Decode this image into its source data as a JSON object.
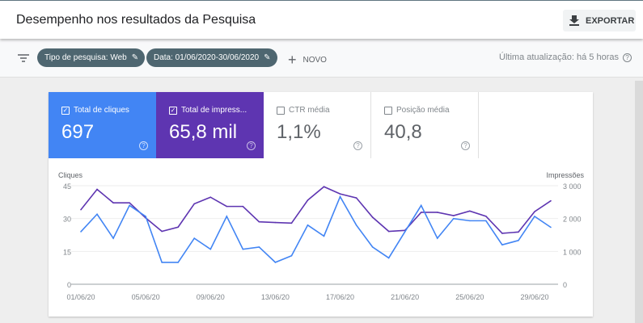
{
  "header": {
    "title": "Desempenho nos resultados da Pesquisa",
    "export_label": "EXPORTAR"
  },
  "toolbar": {
    "chips": [
      "Tipo de pesquisa: Web",
      "Data: 01/06/2020-30/06/2020"
    ],
    "new_label": "NOVO",
    "updated": "Última atualização: há 5 horas"
  },
  "metrics": [
    {
      "label": "Total de cliques",
      "value": "697",
      "checked": true,
      "color": "#4285f4"
    },
    {
      "label": "Total de impress...",
      "value": "65,8 mil",
      "checked": true,
      "color": "#5e35b1"
    },
    {
      "label": "CTR média",
      "value": "1,1%",
      "checked": false
    },
    {
      "label": "Posição média",
      "value": "40,8",
      "checked": false
    }
  ],
  "chart_data": {
    "type": "line",
    "x": [
      "01/06/20",
      "02/06/20",
      "03/06/20",
      "04/06/20",
      "05/06/20",
      "06/06/20",
      "07/06/20",
      "08/06/20",
      "09/06/20",
      "10/06/20",
      "11/06/20",
      "12/06/20",
      "13/06/20",
      "14/06/20",
      "15/06/20",
      "16/06/20",
      "17/06/20",
      "18/06/20",
      "19/06/20",
      "20/06/20",
      "21/06/20",
      "22/06/20",
      "23/06/20",
      "24/06/20",
      "25/06/20",
      "26/06/20",
      "27/06/20",
      "28/06/20",
      "29/06/20",
      "30/06/20"
    ],
    "xticks": [
      "01/06/20",
      "05/06/20",
      "09/06/20",
      "13/06/20",
      "17/06/20",
      "21/06/20",
      "25/06/20",
      "29/06/20"
    ],
    "ylabel_left": "Cliques",
    "yticks_left": [
      "0",
      "15",
      "30",
      "45"
    ],
    "ylim_left": [
      0,
      45
    ],
    "ylabel_right": "Impressões",
    "yticks_right": [
      "0",
      "1 000",
      "2 000",
      "3 000"
    ],
    "ylim_right": [
      0,
      3000
    ],
    "series": [
      {
        "name": "Total de cliques",
        "axis": "left",
        "color": "#4285f4",
        "values": [
          24,
          32,
          21,
          36,
          31,
          10,
          10,
          21,
          16,
          31,
          16,
          17,
          10,
          13,
          27,
          22,
          40,
          27,
          17,
          12,
          24,
          36,
          21,
          30,
          29,
          29,
          18,
          20,
          31,
          26
        ]
      },
      {
        "name": "Total de impress...",
        "axis": "right",
        "color": "#5e35b1",
        "values": [
          2270,
          2890,
          2480,
          2480,
          2020,
          1610,
          1740,
          2450,
          2650,
          2370,
          2370,
          1900,
          1880,
          1860,
          2560,
          2970,
          2750,
          2630,
          2040,
          1610,
          1640,
          2190,
          2190,
          2090,
          2230,
          2070,
          1550,
          1590,
          2210,
          2540
        ]
      }
    ],
    "grid": true
  }
}
